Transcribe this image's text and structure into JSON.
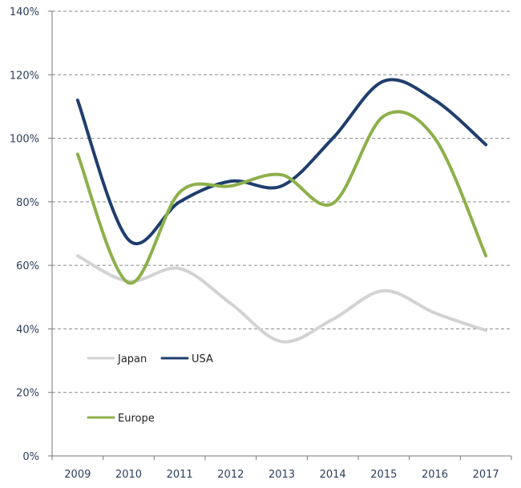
{
  "chart_data": {
    "type": "line",
    "title": "",
    "xlabel": "",
    "ylabel": "",
    "categories": [
      "2009",
      "2010",
      "2011",
      "2012",
      "2013",
      "2014",
      "2015",
      "2016",
      "2017"
    ],
    "y_ticks": [
      "0%",
      "20%",
      "40%",
      "60%",
      "80%",
      "100%",
      "120%",
      "140%"
    ],
    "ylim": [
      0,
      140
    ],
    "grid": true,
    "smooth": true,
    "series": [
      {
        "name": "Japan",
        "color": "#d3d3d3",
        "values": [
          63,
          55,
          59,
          48,
          36,
          43,
          52,
          45,
          39.5
        ]
      },
      {
        "name": "USA",
        "color": "#1f3e6e",
        "values": [
          112,
          68,
          80,
          86.5,
          85,
          100,
          118,
          112,
          98
        ]
      },
      {
        "name": "Europe",
        "color": "#8cb04a",
        "values": [
          95,
          54.5,
          83,
          85,
          88.5,
          79.5,
          107,
          100,
          63
        ]
      }
    ],
    "legend": {
      "placement": "lower-left"
    }
  }
}
